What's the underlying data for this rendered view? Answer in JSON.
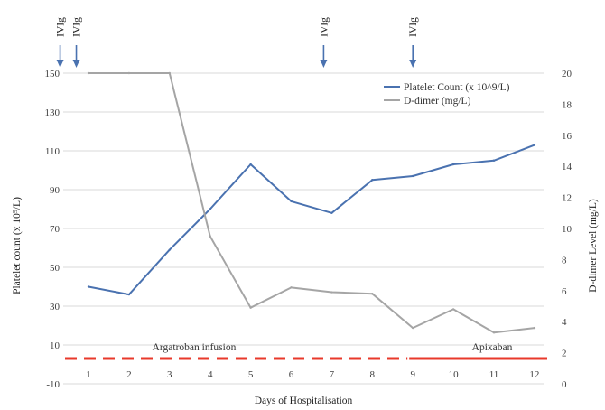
{
  "chart_data": {
    "type": "line",
    "xlabel": "Days of Hospitalisation",
    "ylabel_left": "Platelet count (x 10⁹/L)",
    "ylabel_right": "D-dimer Level (mg/L)",
    "categories": [
      "1",
      "2",
      "3",
      "4",
      "5",
      "6",
      "7",
      "8",
      "9",
      "10",
      "11",
      "12"
    ],
    "ylim_left": [
      -10,
      150
    ],
    "yticks_left": [
      "-10",
      "10",
      "30",
      "50",
      "70",
      "90",
      "110",
      "130",
      "150"
    ],
    "ylim_right": [
      0,
      20
    ],
    "yticks_right": [
      "0",
      "2",
      "4",
      "6",
      "8",
      "10",
      "12",
      "14",
      "16",
      "18",
      "20"
    ],
    "grid": true,
    "legend_position": "top-right",
    "series": [
      {
        "name": "Platelet Count (x 10^9/L)",
        "axis": "left",
        "color": "#4a72b0",
        "values": [
          40,
          36,
          59,
          80,
          103,
          84,
          78,
          95,
          97,
          103,
          105,
          113
        ]
      },
      {
        "name": "D-dimer (mg/L)",
        "axis": "right",
        "color": "#a5a5a5",
        "values": [
          20,
          20,
          20,
          9.5,
          4.9,
          6.2,
          5.9,
          5.8,
          3.6,
          4.8,
          3.3,
          3.6
        ]
      }
    ],
    "ivig_label": "IVIg",
    "ivig_days": [
      0.3,
      0.7,
      6.8,
      9
    ],
    "annotations": {
      "argatroban": {
        "label": "Argatroban infusion",
        "color": "#e8392b",
        "from_day": 0,
        "to_day": 9,
        "style": "dashed"
      },
      "apixaban": {
        "label": "Apixaban",
        "color": "#e8392b",
        "from_day": 9,
        "to_day": 12.5,
        "style": "solid"
      }
    }
  }
}
